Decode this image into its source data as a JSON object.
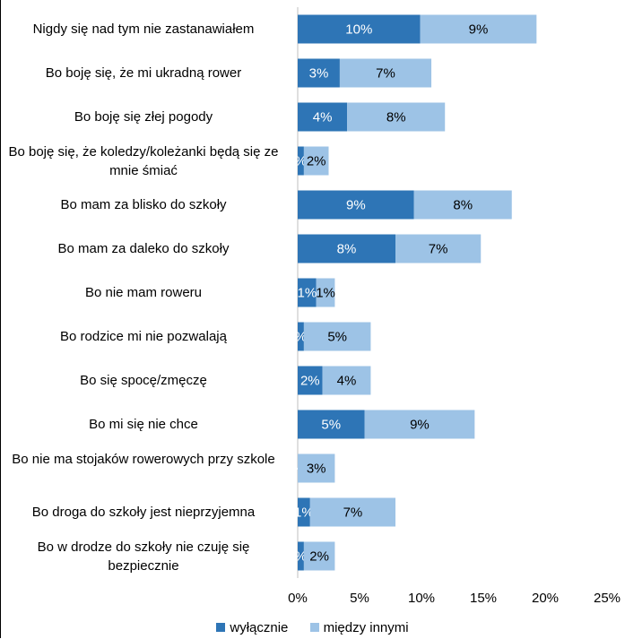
{
  "chart_data": {
    "type": "bar",
    "orientation": "horizontal",
    "stacked": true,
    "categories": [
      "Nigdy się nad tym nie zastanawiałem",
      "Bo boję się, że mi ukradną rower",
      "Bo boję się złej pogody",
      "Bo boję się, że koledzy/koleżanki będą się ze mnie śmiać",
      "Bo mam za blisko do szkoły",
      "Bo mam za daleko do szkoły",
      "Bo nie mam roweru",
      "Bo rodzice mi nie pozwalają",
      "Bo się spocę/zmęczę",
      "Bo mi się nie chce",
      "Bo nie ma stojaków rowerowych przy szkole",
      "Bo droga do szkoły jest nieprzyjemna",
      "Bo w drodze do szkoły nie czuję się bezpiecznie"
    ],
    "series": [
      {
        "name": "wyłącznie",
        "color": "#2e75b6",
        "values": [
          0.099,
          0.034,
          0.04,
          0.005,
          0.094,
          0.079,
          0.015,
          0.005,
          0.02,
          0.054,
          0.0,
          0.01,
          0.005
        ],
        "labels": [
          "10%",
          "3%",
          "4%",
          "%",
          "9%",
          "8%",
          "1%",
          "%",
          "2%",
          "5%",
          "%",
          "1%",
          "%"
        ]
      },
      {
        "name": "między innymi",
        "color": "#9dc3e6",
        "values": [
          0.094,
          0.074,
          0.079,
          0.02,
          0.079,
          0.069,
          0.015,
          0.054,
          0.039,
          0.089,
          0.03,
          0.069,
          0.025
        ],
        "labels": [
          "9%",
          "7%",
          "8%",
          "2%",
          "8%",
          "7%",
          "1%",
          "5%",
          "4%",
          "9%",
          "3%",
          "7%",
          "2%"
        ]
      }
    ],
    "xlim": [
      0,
      0.25
    ],
    "xticks": [
      "0%",
      "5%",
      "10%",
      "15%",
      "20%",
      "25%"
    ],
    "grid": false,
    "legend_position": "bottom"
  }
}
